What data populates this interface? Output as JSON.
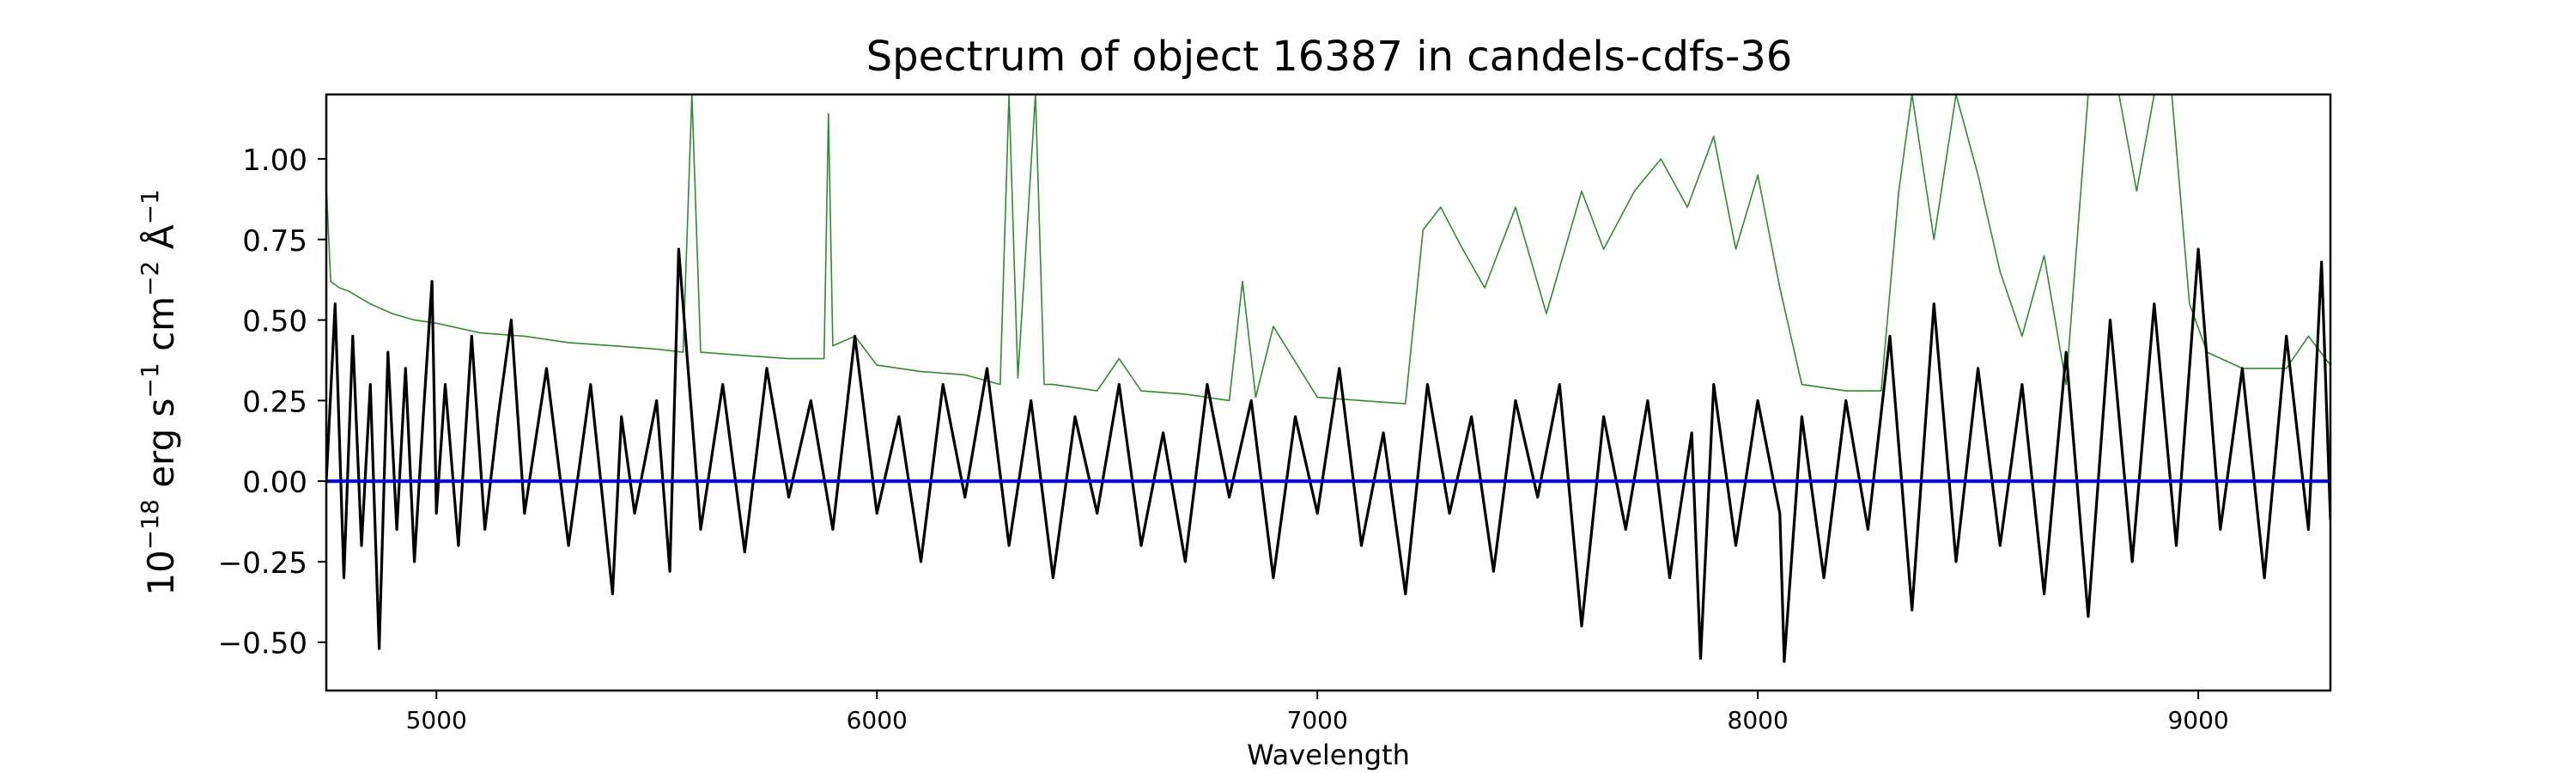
{
  "chart_data": {
    "type": "line",
    "title": "Spectrum of object 16387 in candels-cdfs-36",
    "xlabel": "Wavelength",
    "ylabel": {
      "base": "10",
      "exp1": "−18",
      "part2": " erg s",
      "exp2": "−1",
      "part3": " cm",
      "exp3": "−2",
      "part4": " Å",
      "exp4": "−1"
    },
    "xlim": [
      4750,
      9300
    ],
    "ylim": [
      -0.65,
      1.2
    ],
    "xticks": [
      5000,
      6000,
      7000,
      8000,
      9000
    ],
    "xtick_labels": [
      "5000",
      "6000",
      "7000",
      "8000",
      "9000"
    ],
    "yticks": [
      -0.5,
      -0.25,
      0.0,
      0.25,
      0.5,
      0.75,
      1.0
    ],
    "ytick_labels": [
      "−0.50",
      "−0.25",
      "0.00",
      "0.25",
      "0.50",
      "0.75",
      "1.00"
    ],
    "grid": false,
    "series": [
      {
        "role": "error",
        "color": "#2e8b2e",
        "x": [
          4750,
          4760,
          4780,
          4800,
          4850,
          4900,
          4950,
          5000,
          5100,
          5200,
          5300,
          5400,
          5500,
          5560,
          5580,
          5600,
          5700,
          5800,
          5880,
          5890,
          5900,
          5950,
          6000,
          6100,
          6200,
          6280,
          6300,
          6320,
          6360,
          6380,
          6400,
          6500,
          6550,
          6600,
          6700,
          6800,
          6830,
          6860,
          6900,
          7000,
          7100,
          7200,
          7240,
          7280,
          7330,
          7380,
          7450,
          7520,
          7600,
          7650,
          7720,
          7780,
          7840,
          7900,
          7950,
          8000,
          8050,
          8100,
          8200,
          8280,
          8320,
          8350,
          8400,
          8450,
          8500,
          8550,
          8600,
          8650,
          8700,
          8750,
          8780,
          8820,
          8860,
          8900,
          8940,
          8980,
          9020,
          9100,
          9200,
          9250,
          9300
        ],
        "y": [
          0.92,
          0.62,
          0.6,
          0.59,
          0.55,
          0.52,
          0.5,
          0.49,
          0.46,
          0.45,
          0.43,
          0.42,
          0.41,
          0.4,
          1.2,
          0.4,
          0.39,
          0.38,
          0.38,
          1.14,
          0.42,
          0.45,
          0.36,
          0.34,
          0.33,
          0.3,
          1.2,
          0.32,
          1.2,
          0.3,
          0.3,
          0.28,
          0.38,
          0.28,
          0.27,
          0.25,
          0.62,
          0.26,
          0.48,
          0.26,
          0.25,
          0.24,
          0.78,
          0.85,
          0.72,
          0.6,
          0.85,
          0.52,
          0.9,
          0.72,
          0.9,
          1.0,
          0.85,
          1.07,
          0.72,
          0.95,
          0.6,
          0.3,
          0.28,
          0.28,
          0.9,
          1.2,
          0.75,
          1.2,
          0.95,
          0.65,
          0.45,
          0.7,
          0.3,
          1.2,
          1.2,
          1.2,
          0.9,
          1.2,
          1.2,
          0.55,
          0.4,
          0.35,
          0.35,
          0.45,
          0.36
        ]
      },
      {
        "role": "flux",
        "color": "#000000",
        "x": [
          4750,
          4770,
          4790,
          4810,
          4830,
          4850,
          4870,
          4890,
          4910,
          4930,
          4950,
          4970,
          4990,
          5000,
          5020,
          5050,
          5080,
          5110,
          5140,
          5170,
          5200,
          5250,
          5300,
          5350,
          5400,
          5420,
          5450,
          5500,
          5530,
          5550,
          5600,
          5650,
          5700,
          5750,
          5800,
          5850,
          5900,
          5950,
          6000,
          6050,
          6100,
          6150,
          6200,
          6250,
          6300,
          6350,
          6400,
          6450,
          6500,
          6550,
          6600,
          6650,
          6700,
          6750,
          6800,
          6850,
          6900,
          6950,
          7000,
          7050,
          7100,
          7150,
          7200,
          7250,
          7300,
          7350,
          7400,
          7450,
          7500,
          7550,
          7600,
          7650,
          7700,
          7750,
          7800,
          7850,
          7870,
          7900,
          7950,
          8000,
          8050,
          8060,
          8100,
          8150,
          8200,
          8250,
          8300,
          8350,
          8400,
          8450,
          8500,
          8550,
          8600,
          8650,
          8700,
          8750,
          8800,
          8850,
          8900,
          8950,
          9000,
          9050,
          9100,
          9150,
          9200,
          9250,
          9280,
          9300
        ],
        "y": [
          0.0,
          0.55,
          -0.3,
          0.45,
          -0.2,
          0.3,
          -0.52,
          0.4,
          -0.15,
          0.35,
          -0.25,
          0.2,
          0.62,
          -0.1,
          0.3,
          -0.2,
          0.45,
          -0.15,
          0.2,
          0.5,
          -0.1,
          0.35,
          -0.2,
          0.3,
          -0.35,
          0.2,
          -0.1,
          0.25,
          -0.28,
          0.72,
          -0.15,
          0.3,
          -0.22,
          0.35,
          -0.05,
          0.25,
          -0.15,
          0.45,
          -0.1,
          0.2,
          -0.25,
          0.3,
          -0.05,
          0.35,
          -0.2,
          0.25,
          -0.3,
          0.2,
          -0.1,
          0.3,
          -0.2,
          0.15,
          -0.25,
          0.3,
          -0.05,
          0.25,
          -0.3,
          0.2,
          -0.1,
          0.35,
          -0.2,
          0.15,
          -0.35,
          0.3,
          -0.1,
          0.2,
          -0.28,
          0.25,
          -0.05,
          0.3,
          -0.45,
          0.2,
          -0.15,
          0.25,
          -0.3,
          0.15,
          -0.55,
          0.3,
          -0.2,
          0.25,
          -0.1,
          -0.56,
          0.2,
          -0.3,
          0.25,
          -0.15,
          0.45,
          -0.4,
          0.55,
          -0.25,
          0.35,
          -0.2,
          0.3,
          -0.35,
          0.4,
          -0.42,
          0.5,
          -0.25,
          0.55,
          -0.2,
          0.72,
          -0.15,
          0.35,
          -0.3,
          0.45,
          -0.15,
          0.68,
          -0.12
        ]
      },
      {
        "role": "model",
        "color": "#0000cc",
        "x": [
          4750,
          9300
        ],
        "y": [
          0.0,
          0.0
        ]
      }
    ]
  }
}
